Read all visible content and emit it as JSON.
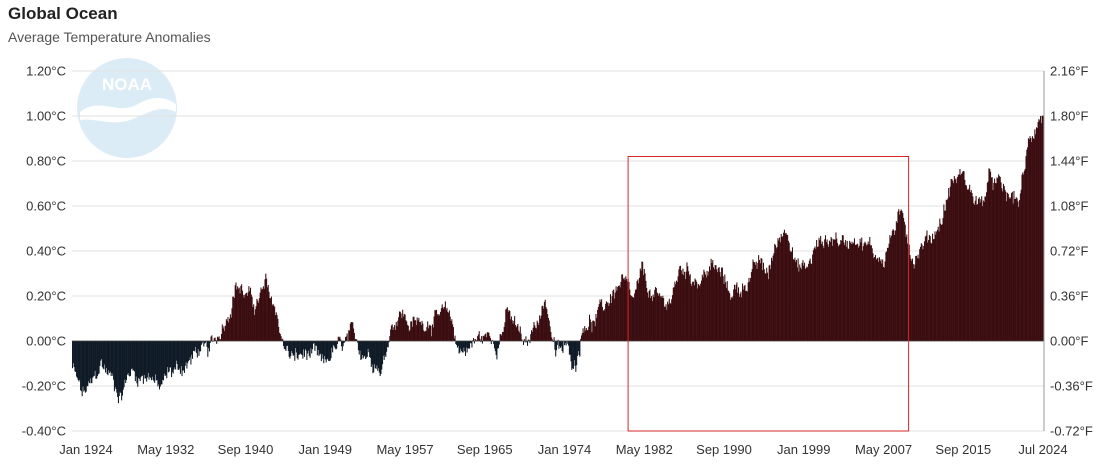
{
  "header": {
    "title": "Global Ocean",
    "subtitle": "Average Temperature Anomalies"
  },
  "watermark": {
    "text": "NOAA",
    "icon": "noaa-logo-icon",
    "color": "#dcecf7"
  },
  "colors": {
    "positive_bar": "#3a0d10",
    "negative_bar": "#0f1a26",
    "grid": "#e2e2e2",
    "highlight_box": "#d62728"
  },
  "chart_data": {
    "type": "bar",
    "title": "Global Ocean",
    "subtitle": "Average Temperature Anomalies",
    "x_range": [
      "1924-01",
      "2024-07"
    ],
    "x_tick_labels": [
      "Jan 1924",
      "May 1932",
      "Sep 1940",
      "Jan 1949",
      "May 1957",
      "Sep 1965",
      "Jan 1974",
      "May 1982",
      "Sep 1990",
      "Jan 1999",
      "May 2007",
      "Sep 2015",
      "Jul 2024"
    ],
    "ylim": [
      -0.4,
      1.2
    ],
    "y_tick_labels_c": [
      "-0.40°C",
      "-0.20°C",
      "0.00°C",
      "0.20°C",
      "0.40°C",
      "0.60°C",
      "0.80°C",
      "1.00°C",
      "1.20°C"
    ],
    "y_tick_labels_f": [
      "-0.72°F",
      "-0.36°F",
      "0.00°F",
      "0.36°F",
      "0.72°F",
      "1.08°F",
      "1.44°F",
      "1.80°F",
      "2.16°F"
    ],
    "grid": true,
    "highlight_range": {
      "x_start": "1981-07",
      "x_end": "2010-07",
      "y_top": 0.82,
      "y_bottom": -0.4
    },
    "anomaly_profile_years": [
      1924,
      1925,
      1926,
      1927,
      1928,
      1929,
      1930,
      1931,
      1932,
      1933,
      1934,
      1935,
      1936,
      1937,
      1938,
      1939,
      1940,
      1941,
      1942,
      1943,
      1944,
      1945,
      1946,
      1947,
      1948,
      1949,
      1950,
      1951,
      1952,
      1953,
      1954,
      1955,
      1956,
      1957,
      1958,
      1959,
      1960,
      1961,
      1962,
      1963,
      1964,
      1965,
      1966,
      1967,
      1968,
      1969,
      1970,
      1971,
      1972,
      1973,
      1974,
      1975,
      1976,
      1977,
      1978,
      1979,
      1980,
      1981,
      1982,
      1983,
      1984,
      1985,
      1986,
      1987,
      1988,
      1989,
      1990,
      1991,
      1992,
      1993,
      1994,
      1995,
      1996,
      1997,
      1998,
      1999,
      2000,
      2001,
      2002,
      2003,
      2004,
      2005,
      2006,
      2007,
      2008,
      2009,
      2010,
      2011,
      2012,
      2013,
      2014,
      2015,
      2016,
      2017,
      2018,
      2019,
      2020,
      2021,
      2022,
      2023,
      2024
    ],
    "anomaly_profile_values": [
      -0.12,
      -0.24,
      -0.2,
      -0.1,
      -0.16,
      -0.24,
      -0.13,
      -0.16,
      -0.14,
      -0.22,
      -0.14,
      -0.12,
      -0.1,
      -0.04,
      -0.06,
      0.02,
      0.12,
      0.26,
      0.2,
      0.16,
      0.24,
      0.14,
      -0.04,
      -0.08,
      -0.06,
      -0.07,
      -0.12,
      -0.04,
      -0.03,
      0.02,
      -0.04,
      -0.06,
      -0.13,
      0.08,
      0.13,
      0.07,
      0.08,
      0.1,
      0.1,
      0.12,
      -0.04,
      -0.03,
      0.01,
      0.02,
      0.0,
      0.12,
      0.05,
      -0.04,
      0.1,
      0.18,
      -0.06,
      -0.03,
      -0.1,
      0.1,
      0.08,
      0.15,
      0.22,
      0.26,
      0.16,
      0.3,
      0.19,
      0.17,
      0.19,
      0.33,
      0.3,
      0.27,
      0.33,
      0.3,
      0.22,
      0.23,
      0.28,
      0.34,
      0.3,
      0.45,
      0.52,
      0.32,
      0.32,
      0.42,
      0.45,
      0.46,
      0.43,
      0.48,
      0.43,
      0.39,
      0.37,
      0.5,
      0.55,
      0.37,
      0.43,
      0.47,
      0.55,
      0.71,
      0.74,
      0.66,
      0.6,
      0.72,
      0.68,
      0.63,
      0.63,
      0.88,
      1.0
    ]
  }
}
